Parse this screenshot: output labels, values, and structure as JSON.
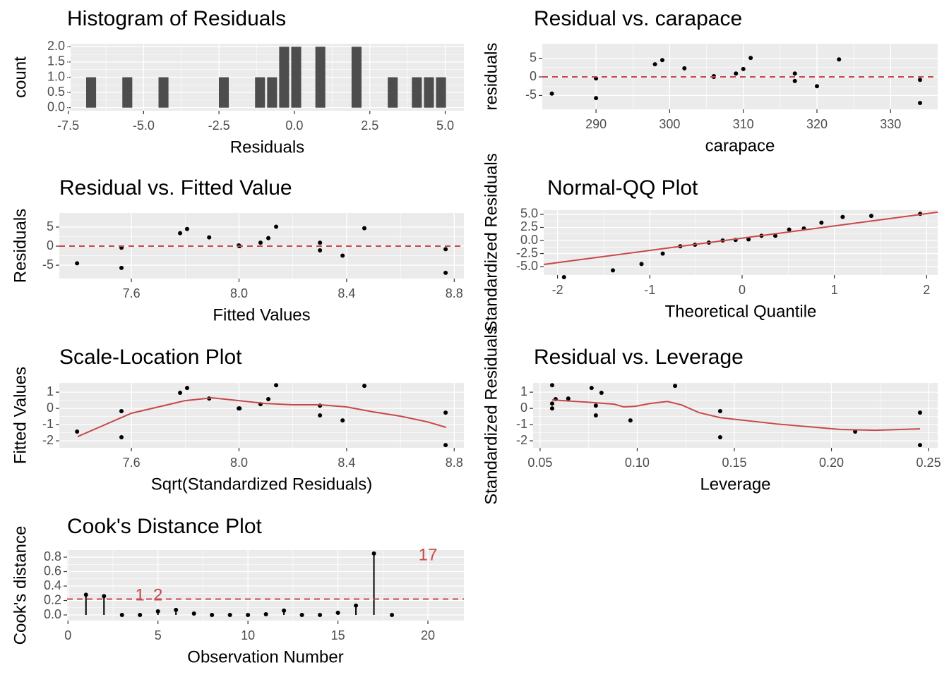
{
  "chart_data": [
    {
      "type": "histogram",
      "title": "Histogram of Residuals",
      "xlabel": "Residuals",
      "ylabel": "count",
      "bins": [
        -6.94,
        -6.54,
        -6.14,
        -5.74,
        -5.34,
        -4.94,
        -4.54,
        -4.14,
        -3.74,
        -3.34,
        -2.94,
        -2.54,
        -2.14,
        -1.74,
        -1.34,
        -0.94,
        -0.54,
        -0.14,
        0.26,
        0.66,
        1.06,
        1.46,
        1.86,
        2.26,
        2.66,
        3.06,
        3.46,
        3.86,
        4.26,
        4.66,
        5.06
      ],
      "counts": [
        1,
        0,
        0,
        1,
        0,
        0,
        1,
        0,
        0,
        0,
        0,
        1,
        0,
        0,
        1,
        1,
        2,
        2,
        0,
        2,
        0,
        0,
        2,
        0,
        0,
        1,
        0,
        1,
        1,
        1
      ],
      "color": "#4d4d4d",
      "grid": true,
      "xlim": [
        -7.42,
        5.62
      ],
      "ylim": [
        -0.1,
        2.1
      ],
      "xticks": [
        -7.5,
        {
          "value": -5,
          "label": "-5.0"
        },
        -2.5,
        {
          "value": 0,
          "label": "0.0"
        },
        2.5,
        {
          "value": 5,
          "label": "5.0"
        }
      ],
      "yticks": [
        {
          "value": 0,
          "label": "0.0"
        },
        0.5,
        {
          "value": 1,
          "label": "1.0"
        },
        1.5,
        {
          "value": 2,
          "label": "2.0"
        }
      ]
    },
    {
      "type": "scatter",
      "title": "Residual vs. carapace",
      "xlabel": "carapace",
      "ylabel": "residuals",
      "x": [
        284,
        290,
        290,
        298,
        299,
        302,
        306,
        306,
        309,
        310,
        311,
        317,
        317,
        320,
        323,
        334,
        334,
        306
      ],
      "y": [
        -4.5,
        -5.7,
        -0.4,
        3.4,
        4.5,
        2.3,
        0.2,
        0,
        0.9,
        2.1,
        5.1,
        0.9,
        -1.1,
        -2.5,
        4.7,
        -0.8,
        -7.0,
        0.1
      ],
      "color": "#000000",
      "hline": 0,
      "line_color": "#c8484a",
      "grid": true,
      "xlim": [
        282.7,
        336.4
      ],
      "ylim": [
        -8.7,
        8.9
      ],
      "xticks": [
        290,
        300,
        310,
        320,
        330
      ],
      "yticks": [
        -5,
        0,
        5
      ]
    },
    {
      "type": "scatter",
      "title": "Residual vs. Fitted Value",
      "xlabel": "Fitted Values",
      "ylabel": "Residuals",
      "x": [
        7.398,
        7.563,
        7.563,
        7.781,
        7.807,
        7.889,
        7.999,
        8.002,
        8.08,
        8.109,
        8.138,
        8.301,
        8.301,
        8.385,
        8.466,
        8.768,
        8.768,
        8.0
      ],
      "y": [
        -4.5,
        -5.7,
        -0.4,
        3.4,
        4.5,
        2.3,
        0.2,
        0,
        0.9,
        2.1,
        5.1,
        0.9,
        -1.1,
        -2.5,
        4.7,
        -0.8,
        -7.0,
        0.1
      ],
      "color": "#000000",
      "hline": 0,
      "line_color": "#c8484a",
      "grid": true,
      "xlim": [
        7.332,
        8.836
      ],
      "ylim": [
        -8.5,
        8.7
      ],
      "xticks": [
        7.6,
        {
          "value": 8,
          "label": "8.0"
        },
        8.4,
        8.8
      ],
      "yticks": [
        -5,
        0,
        5
      ]
    },
    {
      "type": "scatter",
      "title": "Normal-QQ Plot",
      "xlabel": "Theoretical Quantile",
      "ylabel": "Standardized Residuals",
      "x": [
        -1.93,
        -1.4,
        -1.09,
        -0.86,
        -0.67,
        -0.51,
        -0.36,
        -0.21,
        -0.07,
        0.07,
        0.21,
        0.36,
        0.51,
        0.67,
        0.86,
        1.09,
        1.4,
        1.93
      ],
      "y": [
        -7.0,
        -5.7,
        -4.5,
        -2.5,
        -1.1,
        -0.8,
        -0.4,
        0,
        0.1,
        0.2,
        0.9,
        0.9,
        2.1,
        2.3,
        3.4,
        4.5,
        4.7,
        5.1
      ],
      "color": "#000000",
      "line": {
        "intercept": 0.45,
        "slope": 2.34
      },
      "line_color": "#c8484a",
      "grid": true,
      "xlim": [
        -2.15,
        2.12
      ],
      "ylim": [
        -6.6,
        5.8
      ],
      "xticks": [
        -2,
        -1,
        0,
        1,
        2
      ],
      "yticks": [
        {
          "value": -5,
          "label": "-5.0"
        },
        -2.5,
        {
          "value": 0,
          "label": "0.0"
        },
        2.5,
        {
          "value": 5,
          "label": "5.0"
        }
      ]
    },
    {
      "type": "scatter",
      "title": "Scale-Location Plot",
      "xlabel": "Sqrt(Standardized Residuals)",
      "ylabel": "Fitted Values",
      "x": [
        7.398,
        7.563,
        7.563,
        7.781,
        7.807,
        7.889,
        7.999,
        8.002,
        8.08,
        8.109,
        8.138,
        8.301,
        8.301,
        8.385,
        8.466,
        8.768,
        8.768
      ],
      "y": [
        -1.43,
        -1.78,
        -0.17,
        0.96,
        1.26,
        0.61,
        0,
        0,
        0.26,
        0.57,
        1.43,
        0.17,
        -0.43,
        -0.74,
        1.39,
        -0.26,
        -2.26
      ],
      "color": "#000000",
      "line_color": "#c8484a",
      "grid": true,
      "smooth": {
        "x": [
          7.4,
          7.6,
          7.8,
          7.9,
          8.0,
          8.1,
          8.2,
          8.3,
          8.4,
          8.5,
          8.6,
          8.7,
          8.77
        ],
        "y": [
          -1.74,
          -0.3,
          0.48,
          0.65,
          0.48,
          0.3,
          0.22,
          0.22,
          0.09,
          -0.22,
          -0.48,
          -0.83,
          -1.17
        ]
      },
      "xlim": [
        7.332,
        8.836
      ],
      "ylim": [
        -2.43,
        1.57
      ],
      "xticks": [
        7.6,
        {
          "value": 8,
          "label": "8.0"
        },
        8.4,
        8.8
      ],
      "yticks": [
        -2,
        -1,
        0,
        1
      ]
    },
    {
      "type": "scatter",
      "title": "Residual vs. Leverage",
      "xlabel": "Leverage",
      "ylabel": "Standardized Residuals",
      "x": [
        0.0562,
        0.0562,
        0.0562,
        0.058,
        0.0645,
        0.0765,
        0.0787,
        0.0787,
        0.0816,
        0.0965,
        0.1195,
        0.1427,
        0.1427,
        0.2122,
        0.2456,
        0.2456
      ],
      "y": [
        1.43,
        0.3,
        0,
        0.57,
        0.61,
        1.26,
        0.17,
        -0.43,
        0.96,
        -0.74,
        1.39,
        -0.17,
        -1.78,
        -1.43,
        -0.26,
        -2.26
      ],
      "color": "#000000",
      "line_color": "#c8484a",
      "grid": true,
      "smooth": {
        "x": [
          0.0562,
          0.0736,
          0.0882,
          0.093,
          0.0991,
          0.1064,
          0.1155,
          0.1227,
          0.1318,
          0.1427,
          0.1718,
          0.2045,
          0.2227,
          0.2456
        ],
        "y": [
          0.52,
          0.39,
          0.26,
          0.09,
          0.13,
          0.3,
          0.43,
          0.22,
          -0.26,
          -0.57,
          -0.96,
          -1.3,
          -1.35,
          -1.26
        ]
      },
      "xlim": [
        0.0464,
        0.2547
      ],
      "ylim": [
        -2.43,
        1.57
      ],
      "xticks": [
        0.05,
        {
          "value": 0.1,
          "label": "0.10"
        },
        0.15,
        {
          "value": 0.2,
          "label": "0.20"
        },
        0.25
      ],
      "yticks": [
        -2,
        -1,
        0,
        1
      ]
    },
    {
      "type": "stem",
      "title": "Cook's Distance Plot",
      "xlabel": "Observation Number",
      "ylabel": "Cook's distance",
      "x": [
        1,
        2,
        3,
        4,
        5,
        6,
        7,
        8,
        9,
        10,
        11,
        12,
        13,
        14,
        15,
        16,
        17,
        18
      ],
      "y": [
        0.28,
        0.26,
        0,
        0,
        0.05,
        0.07,
        0.02,
        0,
        0,
        0,
        0.01,
        0.06,
        0,
        0,
        0.03,
        0.13,
        0.85,
        0
      ],
      "color": "#000000",
      "hline": 0.22,
      "line_color": "#c8484a",
      "grid": true,
      "annotations": [
        {
          "label": "1",
          "x": 4,
          "y": 0.26
        },
        {
          "label": "2",
          "x": 5,
          "y": 0.26
        },
        {
          "label": "17",
          "x": 20,
          "y": 0.82
        }
      ],
      "xlim": [
        -0.05,
        22
      ],
      "ylim": [
        -0.078,
        0.898
      ],
      "xticks": [
        0,
        5,
        10,
        15,
        20
      ],
      "yticks": [
        {
          "value": 0,
          "label": "0.0"
        },
        0.2,
        0.4,
        0.6,
        0.8
      ]
    }
  ]
}
